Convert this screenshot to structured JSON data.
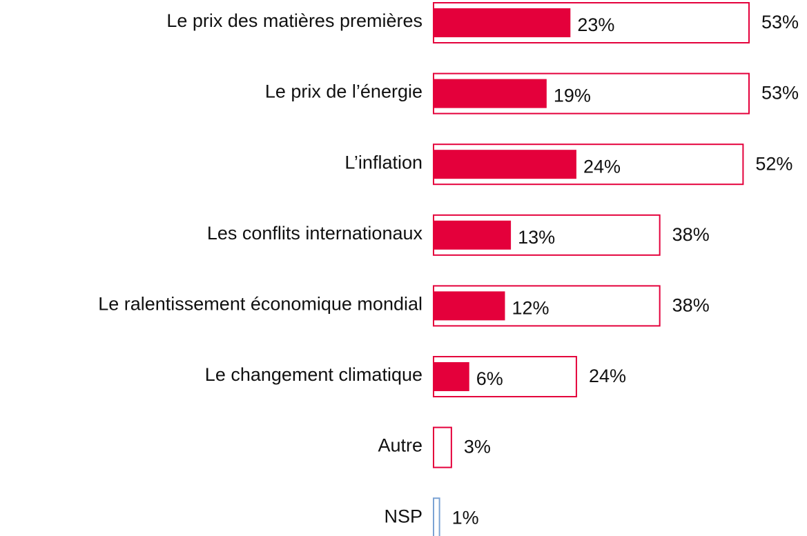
{
  "chart_data": {
    "type": "bar",
    "orientation": "horizontal",
    "categories": [
      "Le prix des matières premières",
      "Le prix de l’énergie",
      "L’inflation",
      "Les conflits internationaux",
      "Le ralentissement économique mondial",
      "Le changement climatique",
      "Autre",
      "NSP"
    ],
    "series": [
      {
        "style": "outline",
        "color": "#e4003b",
        "colors": [
          "#e4003b",
          "#e4003b",
          "#e4003b",
          "#e4003b",
          "#e4003b",
          "#e4003b",
          "#e4003b",
          "#7ba3d4"
        ],
        "values": [
          53,
          53,
          52,
          38,
          38,
          24,
          3,
          1
        ],
        "value_labels": [
          "53%",
          "53%",
          "52%",
          "38%",
          "38%",
          "24%",
          "3%",
          "1%"
        ]
      },
      {
        "style": "filled",
        "color": "#e4003b",
        "values": [
          23,
          19,
          24,
          13,
          12,
          6,
          null,
          null
        ],
        "value_labels": [
          "23%",
          "19%",
          "24%",
          "13%",
          "12%",
          "6%",
          null,
          null
        ]
      }
    ]
  }
}
